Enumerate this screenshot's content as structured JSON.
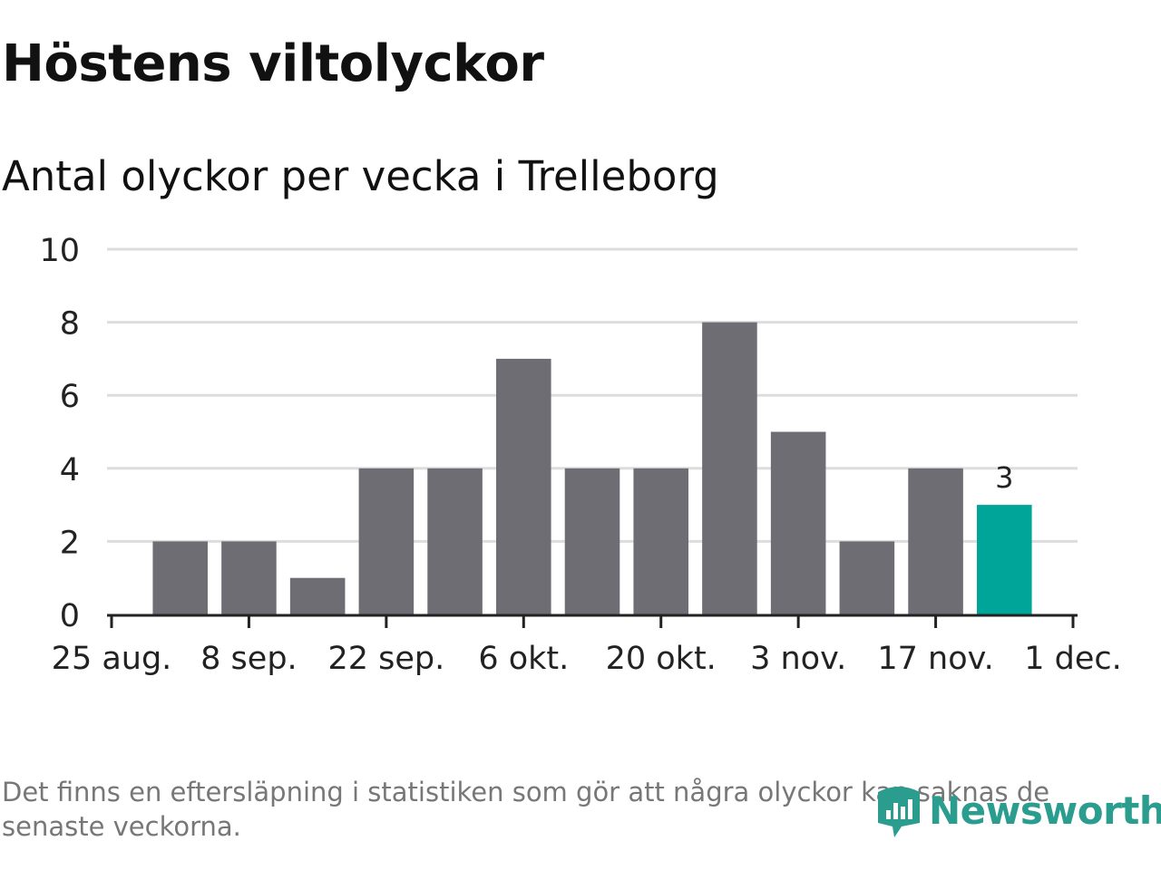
{
  "title": "Höstens viltolyckor",
  "subtitle": "Antal olyckor per vecka i Trelleborg",
  "note": "Det finns en eftersläpning i statistiken som gör att några olyckor kan saknas de senaste veckorna.",
  "brand": {
    "name": "Newsworthy",
    "color": "#2a9d8f",
    "icon": "newsworthy-logo-icon"
  },
  "colors": {
    "bar": "#6e6d73",
    "highlight": "#00a59a",
    "grid": "#dddddd",
    "axis": "#222222"
  },
  "chart_data": {
    "type": "bar",
    "title": "Höstens viltolyckor",
    "subtitle": "Antal olyckor per vecka i Trelleborg",
    "xlabel": "",
    "ylabel": "",
    "categories": [
      "2025-09-01",
      "2025-09-08",
      "2025-09-15",
      "2025-09-22",
      "2025-09-29",
      "2025-10-06",
      "2025-10-13",
      "2025-10-20",
      "2025-10-27",
      "2025-11-03",
      "2025-11-10",
      "2025-11-17",
      "2025-11-24"
    ],
    "values": [
      2,
      2,
      1,
      4,
      4,
      7,
      4,
      4,
      8,
      5,
      2,
      4,
      3
    ],
    "highlight_index": 12,
    "data_labels": [
      {
        "index": 12,
        "text": "3"
      }
    ],
    "ylim": [
      0,
      10
    ],
    "yticks": [
      "0",
      "2",
      "4",
      "6",
      "8",
      "10"
    ],
    "xlim": [
      "2025-08-25",
      "2025-12-01"
    ],
    "xticks": [
      {
        "date": "2025-08-25",
        "label": "25 aug."
      },
      {
        "date": "2025-09-08",
        "label": "8 sep."
      },
      {
        "date": "2025-09-22",
        "label": "22 sep."
      },
      {
        "date": "2025-10-06",
        "label": "6 okt."
      },
      {
        "date": "2025-10-20",
        "label": "20 okt."
      },
      {
        "date": "2025-11-03",
        "label": "3 nov."
      },
      {
        "date": "2025-11-17",
        "label": "17 nov."
      },
      {
        "date": "2025-12-01",
        "label": "1 dec."
      }
    ],
    "grid": true,
    "legend": "none"
  }
}
